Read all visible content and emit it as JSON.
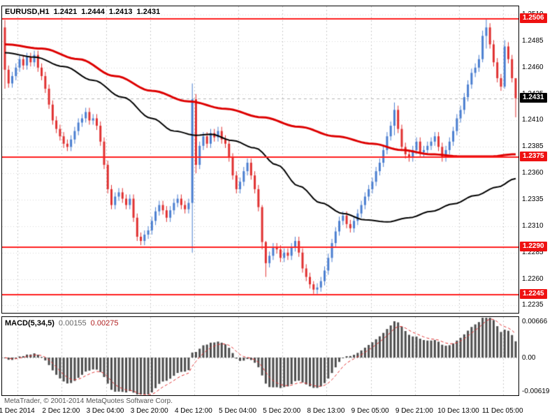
{
  "header": {
    "symbol": "EURUSD,H1",
    "open": "1.2421",
    "high": "1.2444",
    "low": "1.2413",
    "close": "1.2431"
  },
  "indicator_label": {
    "name": "MACD(5,34,5)",
    "value_main": "0.00155",
    "value_signal": "0.00275"
  },
  "copyright": "MetaTrader, © 2001-2014 MetaQuotes Software Corp.",
  "colors": {
    "up": "#4a7ed0",
    "down": "#e03030",
    "ma_black": "#000000",
    "ma_red": "#dd0000",
    "hline": "#ff1f1f",
    "hist": "#4d4d4d",
    "signal": "#e03030",
    "grid": "#c9c9c9",
    "grid_h": "#d6d6d6",
    "current_line": "#b5b5b5",
    "flag_red_bg": "#ee1111",
    "flag_black_bg": "#000000"
  },
  "chart_data": {
    "type": "candlestick",
    "title": "EURUSD,H1",
    "price_axis": {
      "min": 1.2228,
      "max": 1.2518,
      "ticks": [
        "1.2510",
        "1.2485",
        "1.2460",
        "1.2435",
        "1.2410",
        "1.2385",
        "1.2360",
        "1.2335",
        "1.2310",
        "1.2285",
        "1.2260",
        "1.2235"
      ]
    },
    "time_axis": {
      "labels": [
        "1 Dec 2014",
        "2 Dec 12:00",
        "3 Dec 04:00",
        "3 Dec 20:00",
        "4 Dec 12:00",
        "5 Dec 04:00",
        "5 Dec 20:00",
        "8 Dec 13:00",
        "9 Dec 05:00",
        "9 Dec 21:00",
        "10 Dec 13:00",
        "11 Dec 05:00"
      ],
      "fracs": [
        0.03,
        0.1155,
        0.201,
        0.2865,
        0.372,
        0.4575,
        0.543,
        0.6285,
        0.714,
        0.7995,
        0.885,
        0.9705
      ]
    },
    "horizontal_lines": [
      {
        "label": "1.2506",
        "price": 1.2506
      },
      {
        "label": "1.2375",
        "price": 1.2375
      },
      {
        "label": "1.2290",
        "price": 1.229
      },
      {
        "label": "1.2245",
        "price": 1.2245
      }
    ],
    "current_price": {
      "label": "1.2431",
      "price": 1.2431
    },
    "candles": {
      "first_open": 1.2498,
      "default_wick": 0.0004,
      "closes": [
        1.2458,
        1.2445,
        1.2452,
        1.246,
        1.2468,
        1.2462,
        1.247,
        1.2465,
        1.2472,
        1.246,
        1.2452,
        1.244,
        1.2425,
        1.241,
        1.2402,
        1.2395,
        1.2388,
        1.2385,
        1.2392,
        1.24,
        1.2408,
        1.2412,
        1.2418,
        1.241,
        1.2412,
        1.2405,
        1.239,
        1.2368,
        1.2345,
        1.233,
        1.2338,
        1.2342,
        1.2336,
        1.233,
        1.2336,
        1.2318,
        1.23,
        1.2296,
        1.2302,
        1.2306,
        1.2315,
        1.2324,
        1.233,
        1.2325,
        1.2318,
        1.2325,
        1.2332,
        1.2336,
        1.233,
        1.2326,
        1.2332,
        1.243,
        1.2368,
        1.2386,
        1.2395,
        1.2388,
        1.2398,
        1.2394,
        1.24,
        1.2392,
        1.2388,
        1.2375,
        1.2358,
        1.2345,
        1.2352,
        1.2362,
        1.237,
        1.2358,
        1.2345,
        1.2328,
        1.2295,
        1.2275,
        1.2282,
        1.229,
        1.2288,
        1.228,
        1.2285,
        1.2282,
        1.229,
        1.2296,
        1.2285,
        1.227,
        1.2262,
        1.2255,
        1.225,
        1.2252,
        1.2258,
        1.2268,
        1.228,
        1.2294,
        1.2305,
        1.2315,
        1.232,
        1.2312,
        1.2308,
        1.2315,
        1.2322,
        1.233,
        1.2338,
        1.2345,
        1.2352,
        1.2362,
        1.237,
        1.2382,
        1.2395,
        1.2405,
        1.242,
        1.2402,
        1.2385,
        1.2378,
        1.2375,
        1.2382,
        1.239,
        1.238,
        1.2382,
        1.2386,
        1.239,
        1.2395,
        1.2385,
        1.2375,
        1.2382,
        1.239,
        1.24,
        1.2412,
        1.242,
        1.2432,
        1.2444,
        1.2455,
        1.246,
        1.2468,
        1.249,
        1.2498,
        1.2482,
        1.2465,
        1.245,
        1.2442,
        1.248,
        1.2468,
        1.245,
        1.2431
      ],
      "wick_overrides": {
        "0": [
          1.2505,
          1.244
        ],
        "51": [
          1.2445,
          1.2285
        ],
        "52": [
          1.2435,
          1.236
        ],
        "70": [
          1.233,
          1.2288
        ],
        "71": [
          1.2296,
          1.2262
        ],
        "84": [
          1.2258,
          1.2246
        ],
        "106": [
          1.2427,
          1.2396
        ],
        "130": [
          1.2495,
          1.2465
        ],
        "131": [
          1.2506,
          1.2478
        ],
        "136": [
          1.2486,
          1.244
        ],
        "139": [
          1.2444,
          1.2413
        ]
      }
    },
    "overlays": [
      {
        "name": "ma-black",
        "width": 2,
        "points": [
          [
            0,
            1.2474
          ],
          [
            8,
            1.247
          ],
          [
            16,
            1.2461
          ],
          [
            24,
            1.2448
          ],
          [
            32,
            1.2432
          ],
          [
            40,
            1.2412
          ],
          [
            46,
            1.24
          ],
          [
            52,
            1.2396
          ],
          [
            56,
            1.2397
          ],
          [
            62,
            1.2391
          ],
          [
            68,
            1.2384
          ],
          [
            74,
            1.2368
          ],
          [
            80,
            1.2348
          ],
          [
            86,
            1.2332
          ],
          [
            92,
            1.2322
          ],
          [
            98,
            1.2316
          ],
          [
            104,
            1.2314
          ],
          [
            110,
            1.2318
          ],
          [
            116,
            1.2324
          ],
          [
            122,
            1.2331
          ],
          [
            128,
            1.2339
          ],
          [
            134,
            1.2347
          ],
          [
            139,
            1.2355
          ]
        ]
      },
      {
        "name": "ma-red",
        "width": 3,
        "points": [
          [
            0,
            1.2482
          ],
          [
            10,
            1.2478
          ],
          [
            20,
            1.2468
          ],
          [
            30,
            1.2452
          ],
          [
            40,
            1.2438
          ],
          [
            50,
            1.2428
          ],
          [
            60,
            1.2421
          ],
          [
            70,
            1.2413
          ],
          [
            80,
            1.2404
          ],
          [
            90,
            1.2395
          ],
          [
            100,
            1.2388
          ],
          [
            108,
            1.2382
          ],
          [
            116,
            1.2378
          ],
          [
            124,
            1.2376
          ],
          [
            132,
            1.2376
          ],
          [
            139,
            1.2378
          ]
        ]
      }
    ],
    "macd": {
      "name": "MACD",
      "periods": [
        5,
        34,
        5
      ],
      "axis_max": 0.00666,
      "axis_min": -0.00619,
      "axis_labels": [
        "0.00666",
        "0.00",
        "-0.00619"
      ]
    }
  }
}
